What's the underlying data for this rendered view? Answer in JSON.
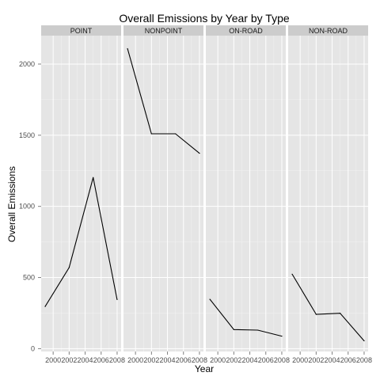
{
  "chart_data": {
    "type": "line",
    "title": "Overall Emissions by Year by Type",
    "xlabel": "Year",
    "ylabel": "Overall Emissions",
    "x": [
      1999,
      2002,
      2005,
      2008
    ],
    "xticks": [
      2000,
      2002,
      2004,
      2006,
      2008
    ],
    "yticks": [
      0,
      500,
      1000,
      1500,
      2000
    ],
    "xlim": [
      1998.5,
      2008.5
    ],
    "ylim": [
      -20,
      2200
    ],
    "grid": true,
    "panels": [
      {
        "name": "POINT",
        "values": [
          296,
          570,
          1203,
          345
        ]
      },
      {
        "name": "NONPOINT",
        "values": [
          2108,
          1510,
          1510,
          1373
        ]
      },
      {
        "name": "ON-ROAD",
        "values": [
          347,
          134,
          130,
          88
        ]
      },
      {
        "name": "NON-ROAD",
        "values": [
          523,
          241,
          249,
          55
        ]
      }
    ]
  }
}
